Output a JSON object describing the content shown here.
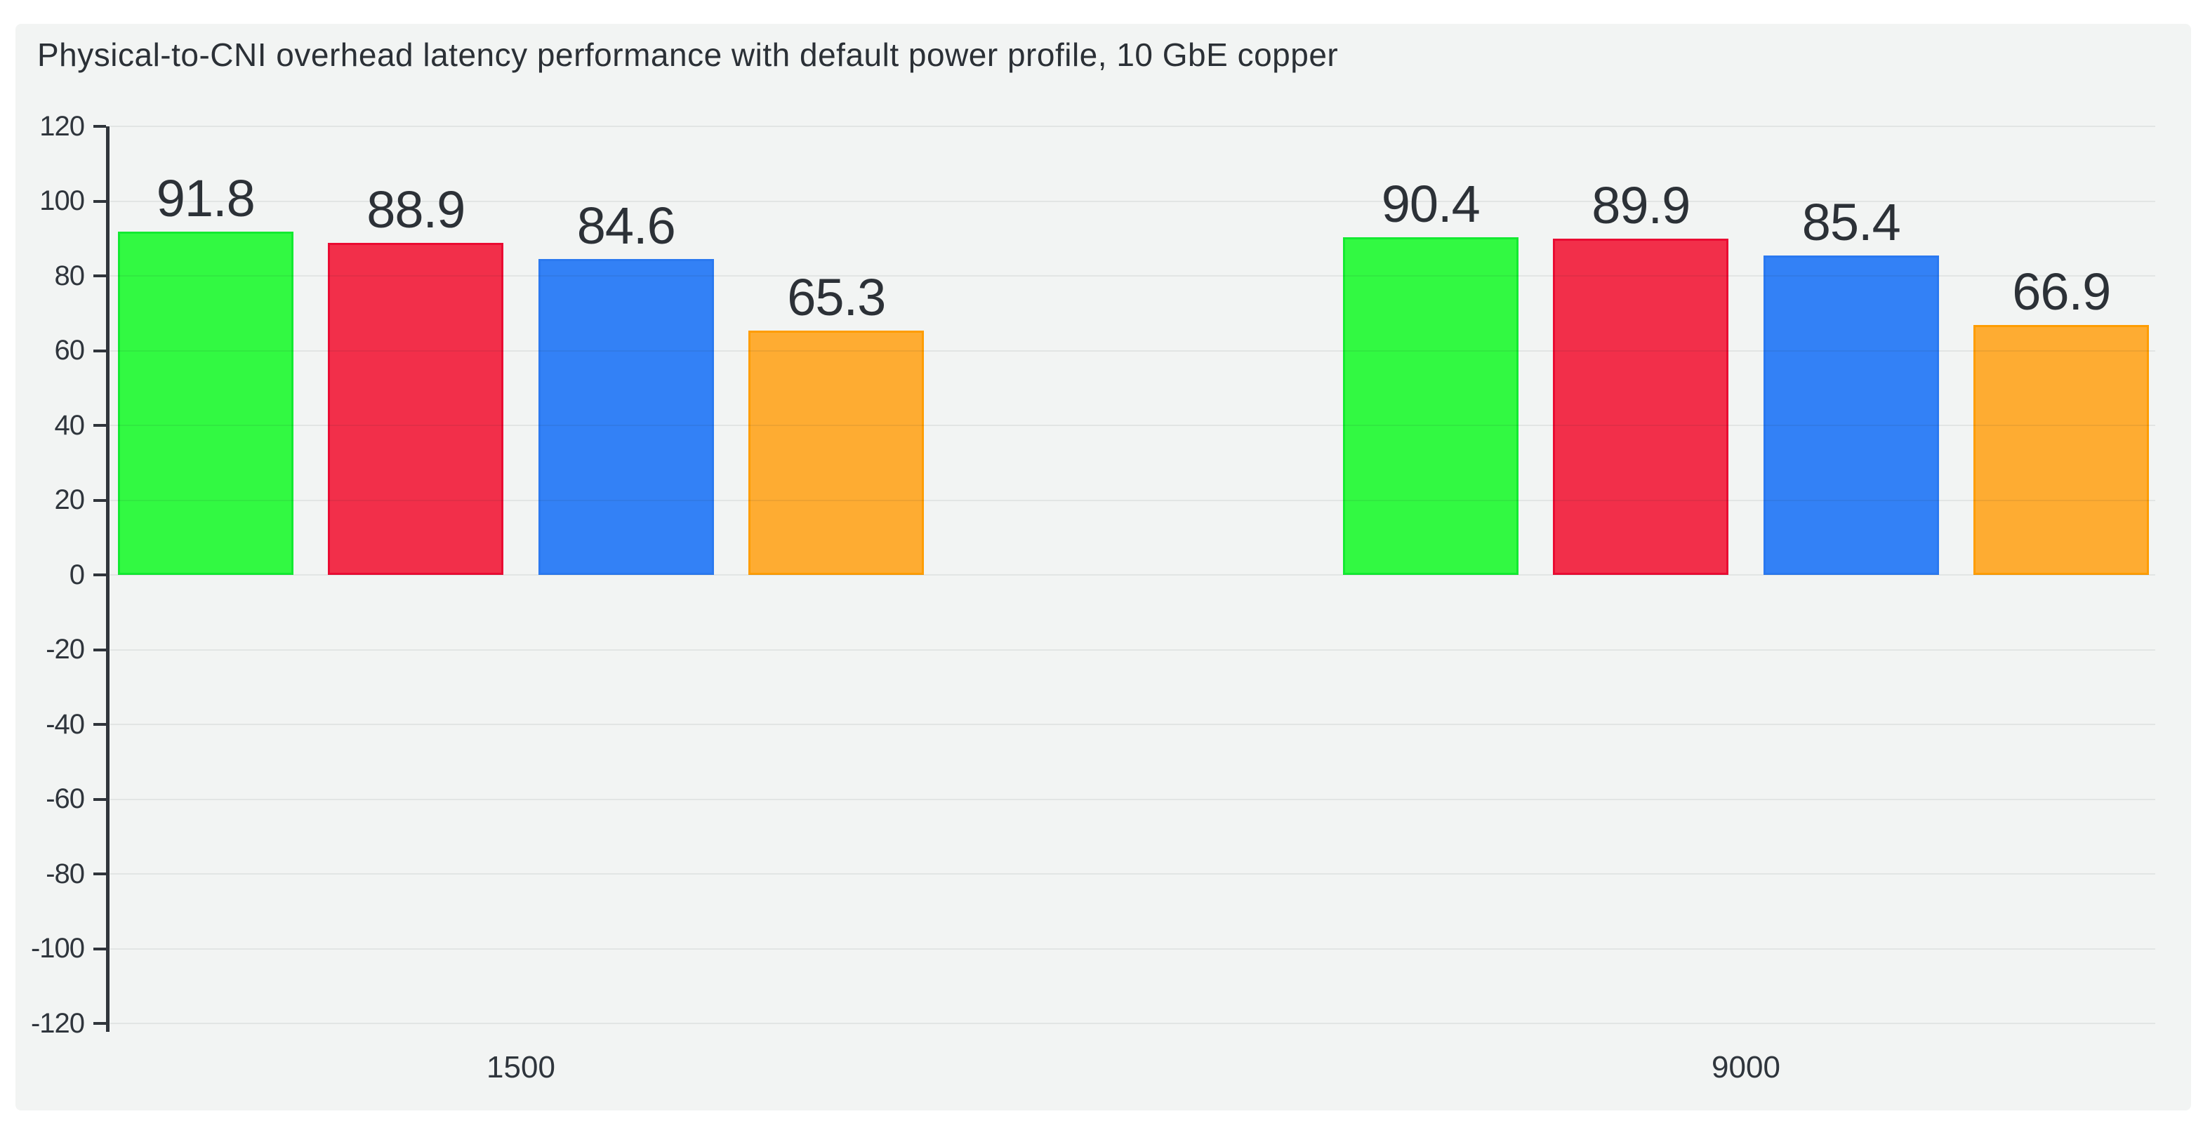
{
  "page": {
    "background": "#ffffff",
    "card_background": "#f2f4f3"
  },
  "chart_data": {
    "type": "bar",
    "title": "Physical-to-CNI overhead latency performance with default power profile, 10 GbE copper",
    "categories": [
      "1500",
      "9000"
    ],
    "series": [
      {
        "color_name": "green",
        "fill": "#32f942",
        "line": "#13ea31",
        "values": [
          91.8,
          90.4
        ]
      },
      {
        "color_name": "red",
        "fill": "#f22f4a",
        "line": "#ea0b32",
        "values": [
          88.9,
          89.9
        ]
      },
      {
        "color_name": "blue",
        "fill": "#3381f6",
        "line": "#2b79f0",
        "values": [
          84.6,
          85.4
        ]
      },
      {
        "color_name": "orange",
        "fill": "#feac32",
        "line": "#fe9d02",
        "values": [
          65.3,
          66.9
        ]
      }
    ],
    "value_labels": [
      [
        "91.8",
        "88.9",
        "84.6",
        "65.3"
      ],
      [
        "90.4",
        "89.9",
        "85.4",
        "66.9"
      ]
    ],
    "ylim": [
      -120,
      120
    ],
    "ytick_step": 20,
    "ytick_labels": [
      "120",
      "100",
      "80",
      "60",
      "40",
      "20",
      "0",
      "-20",
      "-40",
      "-60",
      "-80",
      "-100",
      "-120"
    ],
    "grid": true,
    "legend": "none",
    "value_label_position": "outside-top",
    "axis_color": "#30353b",
    "grid_color": "#e3e5e6",
    "text_color": "#2f353c",
    "value_label_color": "#2c3137"
  }
}
